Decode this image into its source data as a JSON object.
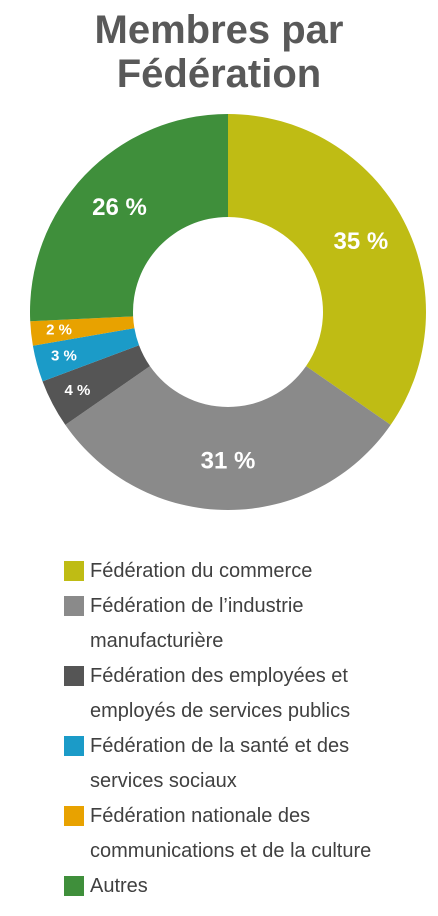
{
  "chart_data": {
    "type": "donut",
    "title": "Membres par Fédération",
    "categories": [
      "Fédération du commerce",
      "Fédération de l’industrie manufacturière",
      "Fédération des employées et employés de services publics",
      "Fédération de la santé et des services sociaux",
      "Fédération nationale des communications et de la culture",
      "Autres"
    ],
    "values": [
      35,
      31,
      4,
      3,
      2,
      26
    ],
    "value_labels": [
      "35 %",
      "31 %",
      "4 %",
      "3 %",
      "2 %",
      "26 %"
    ],
    "colors": [
      "#bfbc14",
      "#8a8a8a",
      "#555555",
      "#1b9bc8",
      "#e8a200",
      "#3f8f3b"
    ],
    "legend": "bottom"
  }
}
